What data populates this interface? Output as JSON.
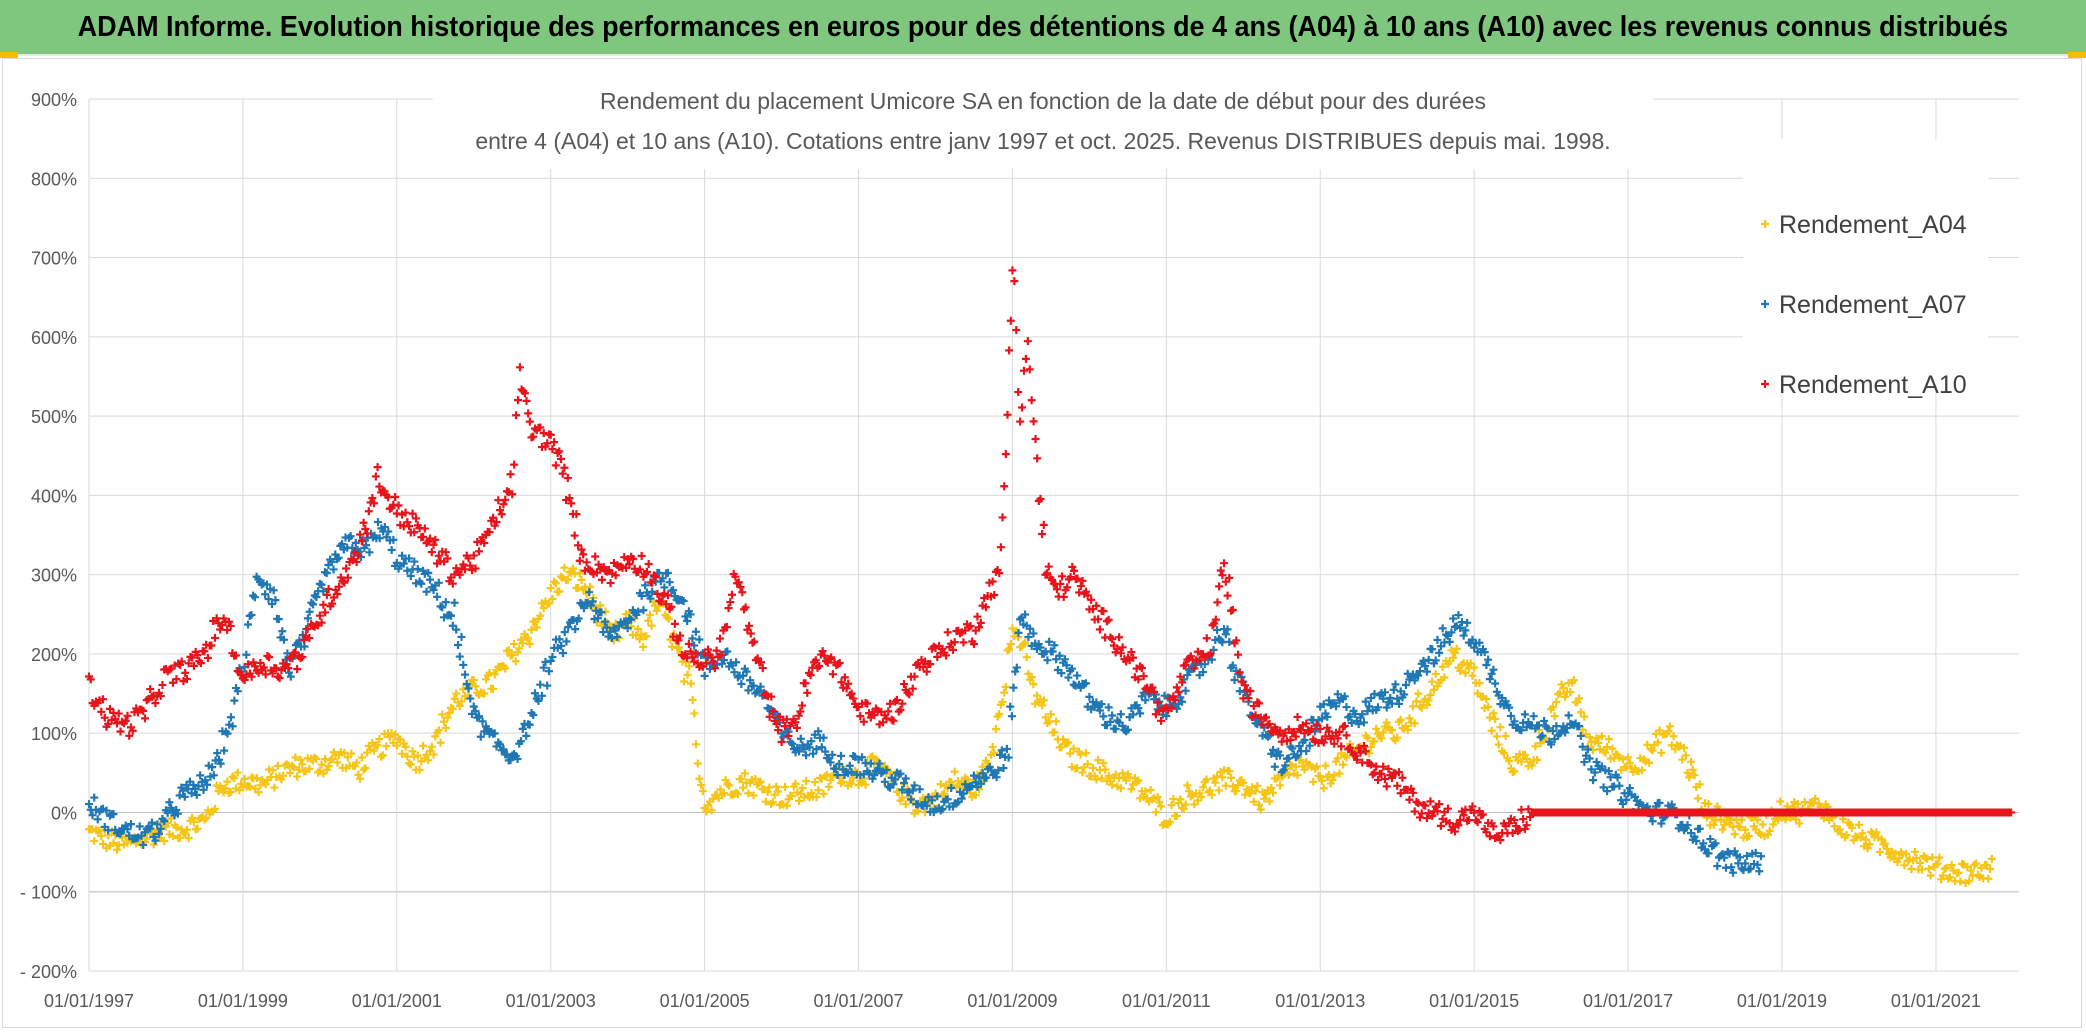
{
  "header": {
    "banner": "ADAM Informe. Evolution historique des performances en euros pour des détentions de 4 ans (A04) à 10 ans (A10) avec les revenus connus distribués"
  },
  "colors": {
    "banner_bg": "#7fc77f",
    "A04": "#f5c518",
    "A07": "#1f77b4",
    "A10": "#e8141c",
    "grid": "#d9d9d9",
    "axis_text": "#595959"
  },
  "chart_data": {
    "type": "scatter",
    "title_line1": "Rendement du placement Umicore SA en fonction de la date de début pour des durées",
    "title_line2": "entre 4 (A04) et 10 ans (A10). Cotations entre janv 1997 et oct. 2025. Revenus DISTRIBUES depuis mai. 1998.",
    "xlabel": "",
    "ylabel": "",
    "x_ticks": [
      "01/01/1997",
      "01/01/1999",
      "01/01/2001",
      "01/01/2003",
      "01/01/2005",
      "01/01/2007",
      "01/01/2009",
      "01/01/2011",
      "01/01/2013",
      "01/01/2015",
      "01/01/2017",
      "01/01/2019",
      "01/01/2021"
    ],
    "x_range_years": [
      1997.0,
      2022.08
    ],
    "y_ticks": [
      "- 200%",
      "- 100%",
      "0%",
      "100%",
      "200%",
      "300%",
      "400%",
      "500%",
      "600%",
      "700%",
      "800%",
      "900%"
    ],
    "y_tick_values": [
      -200,
      -100,
      0,
      100,
      200,
      300,
      400,
      500,
      600,
      700,
      800,
      900
    ],
    "ylim": [
      -200,
      900
    ],
    "grid": true,
    "legend_position": "top-right",
    "series": [
      {
        "name": "Rendement_A04",
        "key": "A04",
        "x": [
          1997.0,
          1997.25,
          1997.5,
          1997.75,
          1998.0,
          1998.25,
          1998.5,
          1998.75,
          1999.0,
          1999.25,
          1999.5,
          1999.75,
          2000.0,
          2000.25,
          2000.5,
          2000.75,
          2001.0,
          2001.25,
          2001.5,
          2001.75,
          2002.0,
          2002.25,
          2002.5,
          2002.75,
          2003.0,
          2003.2,
          2003.4,
          2003.6,
          2003.8,
          2004.0,
          2004.2,
          2004.4,
          2004.6,
          2004.8,
          2005.0,
          2005.25,
          2005.5,
          2005.75,
          2006.0,
          2006.25,
          2006.5,
          2006.75,
          2007.0,
          2007.25,
          2007.5,
          2007.75,
          2008.0,
          2008.25,
          2008.5,
          2008.7,
          2008.85,
          2009.0,
          2009.1,
          2009.25,
          2009.5,
          2009.75,
          2010.0,
          2010.25,
          2010.5,
          2010.75,
          2011.0,
          2011.25,
          2011.5,
          2011.75,
          2012.0,
          2012.25,
          2012.5,
          2012.75,
          2013.0,
          2013.25,
          2013.5,
          2013.75,
          2014.0,
          2014.25,
          2014.5,
          2014.75,
          2015.0,
          2015.25,
          2015.5,
          2015.75,
          2016.0,
          2016.25,
          2016.5,
          2016.75,
          2017.0,
          2017.25,
          2017.5,
          2017.75,
          2018.0,
          2018.25,
          2018.5,
          2018.75,
          2019.0,
          2019.25,
          2019.5,
          2019.75,
          2020.0,
          2020.25,
          2020.5,
          2020.75,
          2021.0,
          2021.25,
          2021.5,
          2021.75
        ],
        "y": [
          -25,
          -35,
          -40,
          -30,
          -22,
          -20,
          -10,
          35,
          40,
          35,
          50,
          60,
          60,
          70,
          55,
          80,
          95,
          65,
          90,
          140,
          155,
          165,
          200,
          230,
          275,
          300,
          290,
          255,
          220,
          240,
          220,
          265,
          220,
          160,
          10,
          30,
          40,
          30,
          20,
          25,
          30,
          50,
          45,
          60,
          30,
          10,
          15,
          40,
          30,
          60,
          140,
          230,
          220,
          160,
          110,
          70,
          60,
          45,
          40,
          20,
          -5,
          20,
          30,
          40,
          35,
          15,
          40,
          60,
          40,
          60,
          80,
          100,
          100,
          130,
          165,
          200,
          170,
          110,
          60,
          70,
          120,
          165,
          90,
          80,
          60,
          70,
          100,
          70,
          0,
          -10,
          -20,
          -20,
          5,
          0,
          10,
          -15,
          -30,
          -40,
          -50,
          -60,
          -70,
          -75,
          -75,
          -70
        ]
      },
      {
        "name": "Rendement_A07",
        "key": "A07",
        "x": [
          1997.0,
          1997.25,
          1997.5,
          1997.75,
          1998.0,
          1998.2,
          1998.4,
          1998.6,
          1998.8,
          1999.0,
          1999.2,
          1999.4,
          1999.6,
          1999.8,
          2000.0,
          2000.2,
          2000.4,
          2000.6,
          2000.8,
          2001.0,
          2001.25,
          2001.5,
          2001.75,
          2002.0,
          2002.25,
          2002.5,
          2002.75,
          2003.0,
          2003.25,
          2003.5,
          2003.75,
          2004.0,
          2004.25,
          2004.5,
          2004.75,
          2005.0,
          2005.25,
          2005.5,
          2005.75,
          2006.0,
          2006.25,
          2006.5,
          2006.75,
          2007.0,
          2007.25,
          2007.5,
          2007.75,
          2008.0,
          2008.25,
          2008.5,
          2008.75,
          2008.95,
          2009.1,
          2009.25,
          2009.5,
          2009.75,
          2010.0,
          2010.25,
          2010.5,
          2010.75,
          2011.0,
          2011.25,
          2011.5,
          2011.75,
          2012.0,
          2012.25,
          2012.5,
          2012.75,
          2013.0,
          2013.25,
          2013.5,
          2013.75,
          2014.0,
          2014.25,
          2014.5,
          2014.75,
          2015.0,
          2015.25,
          2015.5,
          2015.75,
          2016.0,
          2016.25,
          2016.5,
          2016.75,
          2017.0,
          2017.25,
          2017.5,
          2017.75,
          2018.0,
          2018.25,
          2018.5,
          2018.75
        ],
        "y": [
          10,
          -10,
          -25,
          -30,
          -10,
          20,
          30,
          50,
          100,
          180,
          300,
          270,
          180,
          220,
          280,
          320,
          340,
          330,
          360,
          320,
          300,
          280,
          240,
          120,
          90,
          70,
          120,
          190,
          230,
          270,
          220,
          240,
          280,
          300,
          260,
          180,
          200,
          170,
          150,
          100,
          80,
          90,
          60,
          60,
          50,
          40,
          20,
          10,
          20,
          40,
          50,
          80,
          250,
          220,
          200,
          180,
          140,
          120,
          110,
          150,
          130,
          160,
          190,
          230,
          150,
          100,
          60,
          80,
          120,
          140,
          120,
          140,
          150,
          180,
          200,
          240,
          220,
          170,
          120,
          110,
          100,
          120,
          60,
          40,
          20,
          0,
          0,
          -10,
          -40,
          -60,
          -65,
          -60
        ]
      },
      {
        "name": "Rendement_A10",
        "key": "A10",
        "x": [
          1997.0,
          1997.25,
          1997.5,
          1997.75,
          1998.0,
          1998.25,
          1998.5,
          1998.75,
          1999.0,
          1999.25,
          1999.5,
          1999.75,
          2000.0,
          2000.25,
          2000.5,
          2000.75,
          2001.0,
          2001.25,
          2001.5,
          2001.75,
          2002.0,
          2002.25,
          2002.5,
          2002.6,
          2002.75,
          2003.0,
          2003.2,
          2003.4,
          2003.6,
          2003.8,
          2004.0,
          2004.25,
          2004.5,
          2004.75,
          2005.0,
          2005.2,
          2005.4,
          2005.6,
          2005.8,
          2006.0,
          2006.2,
          2006.4,
          2006.6,
          2006.8,
          2007.0,
          2007.25,
          2007.5,
          2007.75,
          2008.0,
          2008.25,
          2008.5,
          2008.7,
          2008.85,
          2009.0,
          2009.1,
          2009.2,
          2009.3,
          2009.45,
          2009.6,
          2009.8,
          2010.0,
          2010.25,
          2010.5,
          2010.75,
          2011.0,
          2011.25,
          2011.5,
          2011.6,
          2011.75,
          2012.0,
          2012.25,
          2012.5,
          2012.75,
          2013.0,
          2013.25,
          2013.5,
          2013.75,
          2014.0,
          2014.25,
          2014.5,
          2014.75,
          2015.0,
          2015.25,
          2015.5,
          2015.75,
          2015.9,
          2016.5,
          2017.0,
          2017.5,
          2018.0,
          2018.5,
          2019.0,
          2019.5,
          2020.0,
          2020.5,
          2021.0,
          2021.5,
          2022.0
        ],
        "y": [
          160,
          120,
          110,
          130,
          170,
          180,
          200,
          250,
          170,
          190,
          180,
          200,
          250,
          290,
          330,
          420,
          380,
          360,
          330,
          300,
          320,
          360,
          420,
          550,
          480,
          470,
          420,
          320,
          310,
          300,
          320,
          310,
          260,
          200,
          190,
          200,
          300,
          220,
          150,
          100,
          120,
          180,
          200,
          170,
          130,
          120,
          130,
          180,
          200,
          220,
          230,
          280,
          300,
          700,
          500,
          600,
          450,
          300,
          280,
          300,
          260,
          230,
          200,
          160,
          120,
          180,
          200,
          220,
          320,
          150,
          120,
          100,
          110,
          100,
          100,
          80,
          50,
          40,
          10,
          0,
          -10,
          0,
          -30,
          -20,
          0,
          0,
          0,
          0,
          0,
          0,
          0,
          0,
          0,
          0,
          0,
          0,
          0,
          0
        ]
      }
    ]
  }
}
